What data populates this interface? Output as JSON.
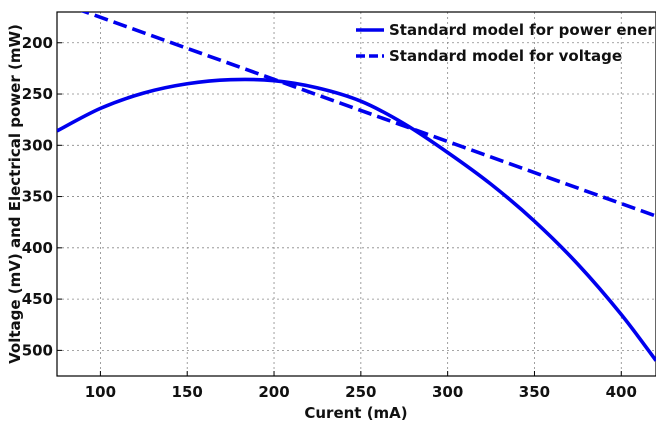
{
  "chart_data": {
    "type": "line",
    "title": "",
    "xlabel": "Curent (mA)",
    "ylabel": "Voltage (mV) and Electrical power (mW)",
    "xlim": [
      75,
      420
    ],
    "ylim": [
      170,
      525
    ],
    "y_inverted": true,
    "grid": true,
    "legend_position": "top-right",
    "x_ticks": [
      100,
      150,
      200,
      250,
      300,
      350,
      400
    ],
    "y_ticks": [
      200,
      250,
      300,
      350,
      400,
      450,
      500
    ],
    "series": [
      {
        "name": "Standard model for power energy",
        "style": "solid",
        "color": "#0000ee",
        "x": [
          75,
          100,
          125,
          150,
          175,
          200,
          225,
          250,
          275,
          300,
          325,
          350,
          375,
          400,
          420
        ],
        "y": [
          286,
          264,
          249,
          240,
          236,
          237,
          244,
          257,
          279,
          307,
          338,
          374,
          416,
          465,
          510
        ]
      },
      {
        "name": "Standard model for voltage",
        "style": "dashed",
        "color": "#0000ee",
        "x": [
          75,
          420
        ],
        "y": [
          160,
          369
        ]
      }
    ]
  }
}
